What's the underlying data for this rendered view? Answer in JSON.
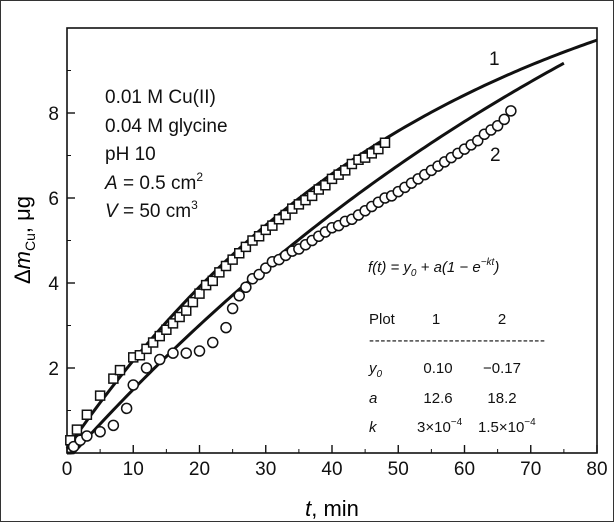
{
  "chart_data": {
    "type": "scatter",
    "xlabel": {
      "var": "t",
      "rest": ", min"
    },
    "ylabel": {
      "prefix": "Δ",
      "var": "m",
      "sub": "Cu",
      "rest": ", μg"
    },
    "xlim": [
      0,
      80
    ],
    "ylim": [
      0,
      10
    ],
    "xticks": [
      "0",
      "10",
      "20",
      "30",
      "40",
      "50",
      "60",
      "70",
      "80"
    ],
    "yticks": [
      "2",
      "4",
      "6",
      "8"
    ],
    "conditions": {
      "line1": "0.01 M Cu(II)",
      "line2": "0.04 M glycine",
      "line3": "pH 10",
      "area_var": "A",
      "area_eq": " = 0.5 cm",
      "area_exp": "2",
      "vol_var": "V",
      "vol_eq": " = 50 cm",
      "vol_exp": "3"
    },
    "formula": {
      "lhs": "f(t) = y",
      "sub0": "0",
      "mid": " + a(1 − e",
      "exp": "−kt",
      "end": ")"
    },
    "param_table": {
      "header": [
        "Plot",
        "1",
        "2"
      ],
      "separator": "-------------------------------",
      "rows": [
        {
          "param": "y",
          "param_sub": "0",
          "v1": "0.10",
          "v2": "−0.17"
        },
        {
          "param": "a",
          "param_sub": "",
          "v1": "12.6",
          "v2": "18.2"
        },
        {
          "param": "k",
          "param_sub": "",
          "v1": "3×10",
          "v1_exp": "−4",
          "v2": "1.5×10",
          "v2_exp": "−4"
        }
      ]
    },
    "series": [
      {
        "name": "1",
        "marker": "square",
        "fit": {
          "y0": 0.1,
          "a": 12.6,
          "k": 0.018,
          "t_end": 80
        },
        "x": [
          0.5,
          1.5,
          3,
          5,
          7,
          8,
          10,
          11,
          12,
          13,
          14,
          15,
          16,
          17,
          18,
          19,
          20,
          21,
          22,
          23,
          24,
          25,
          26,
          27,
          28,
          29,
          30,
          31,
          32,
          33,
          34,
          35,
          36,
          37,
          38,
          39,
          40,
          41,
          42,
          43,
          44,
          45,
          46,
          47,
          48
        ],
        "y": [
          0.3,
          0.55,
          0.9,
          1.35,
          1.75,
          1.95,
          2.25,
          2.3,
          2.45,
          2.6,
          2.75,
          2.9,
          3.05,
          3.2,
          3.35,
          3.55,
          3.75,
          3.95,
          4.05,
          4.25,
          4.4,
          4.55,
          4.7,
          4.85,
          5.0,
          5.1,
          5.25,
          5.35,
          5.5,
          5.6,
          5.75,
          5.85,
          5.95,
          6.05,
          6.2,
          6.3,
          6.45,
          6.55,
          6.65,
          6.8,
          6.9,
          6.95,
          7.05,
          7.15,
          7.3
        ]
      },
      {
        "name": "2",
        "marker": "circle",
        "fit": {
          "y0": -0.17,
          "a": 18.2,
          "k": 0.0096,
          "t_end": 75
        },
        "x": [
          1,
          2,
          3,
          5,
          7,
          9,
          10,
          12,
          14,
          16,
          18,
          20,
          22,
          24,
          25,
          26,
          27,
          28,
          29,
          30,
          31,
          32,
          33,
          34,
          35,
          36,
          37,
          38,
          39,
          40,
          41,
          42,
          43,
          44,
          45,
          46,
          47,
          48,
          49,
          50,
          51,
          52,
          53,
          54,
          55,
          56,
          57,
          58,
          59,
          60,
          61,
          62,
          63,
          64,
          65,
          66,
          67
        ],
        "y": [
          0.15,
          0.3,
          0.4,
          0.5,
          0.65,
          1.05,
          1.6,
          2.0,
          2.2,
          2.35,
          2.35,
          2.4,
          2.6,
          2.95,
          3.4,
          3.7,
          3.9,
          4.1,
          4.2,
          4.35,
          4.5,
          4.55,
          4.65,
          4.75,
          4.8,
          4.9,
          5.0,
          5.1,
          5.2,
          5.3,
          5.35,
          5.45,
          5.5,
          5.6,
          5.7,
          5.8,
          5.9,
          6.0,
          6.05,
          6.15,
          6.25,
          6.35,
          6.45,
          6.55,
          6.65,
          6.75,
          6.85,
          6.95,
          7.05,
          7.15,
          7.25,
          7.35,
          7.5,
          7.6,
          7.7,
          7.85,
          8.05
        ]
      }
    ]
  }
}
